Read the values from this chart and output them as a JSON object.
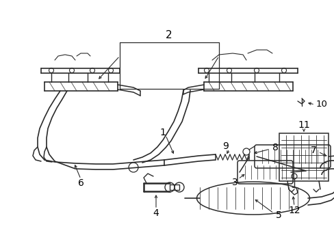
{
  "bg_color": "#ffffff",
  "line_color": "#2a2a2a",
  "text_color": "#000000",
  "figsize": [
    4.89,
    3.6
  ],
  "dpi": 100
}
